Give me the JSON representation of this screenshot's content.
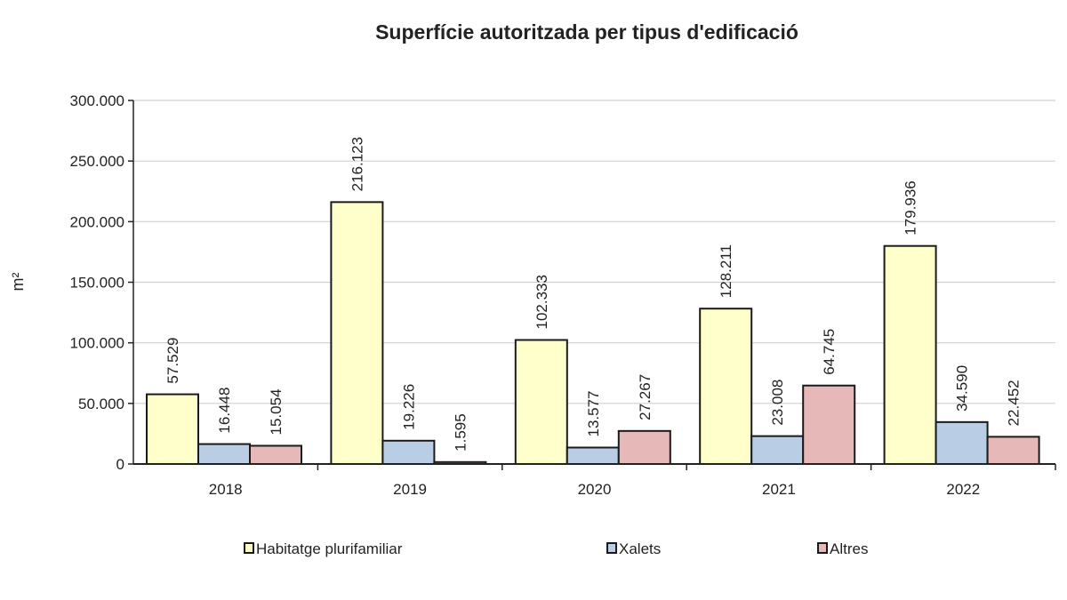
{
  "chart_data": {
    "type": "bar",
    "title": "Superfície autoritzada per tipus d'edificació",
    "ylabel": "m²",
    "xlabel": "",
    "categories": [
      "2018",
      "2019",
      "2020",
      "2021",
      "2022"
    ],
    "series": [
      {
        "name": "Habitatge plurifamiliar",
        "color": "#ffffcc",
        "values": [
          57529,
          216123,
          102333,
          128211,
          179936
        ],
        "labels": [
          "57.529",
          "216.123",
          "102.333",
          "128.211",
          "179.936"
        ]
      },
      {
        "name": "Xalets",
        "color": "#b9cde5",
        "values": [
          16448,
          19226,
          13577,
          23008,
          34590
        ],
        "labels": [
          "16.448",
          "19.226",
          "13.577",
          "23.008",
          "34.590"
        ]
      },
      {
        "name": "Altres",
        "color": "#e6b9b8",
        "values": [
          15054,
          1595,
          27267,
          64745,
          22452
        ],
        "labels": [
          "15.054",
          "1.595",
          "27.267",
          "64.745",
          "22.452"
        ]
      }
    ],
    "ylim": [
      0,
      300000
    ],
    "yticks": [
      0,
      50000,
      100000,
      150000,
      200000,
      250000,
      300000
    ],
    "ytick_labels": [
      "0",
      "50.000",
      "100.000",
      "150.000",
      "200.000",
      "250.000",
      "300.000"
    ],
    "grid": true,
    "legend_position": "bottom"
  }
}
